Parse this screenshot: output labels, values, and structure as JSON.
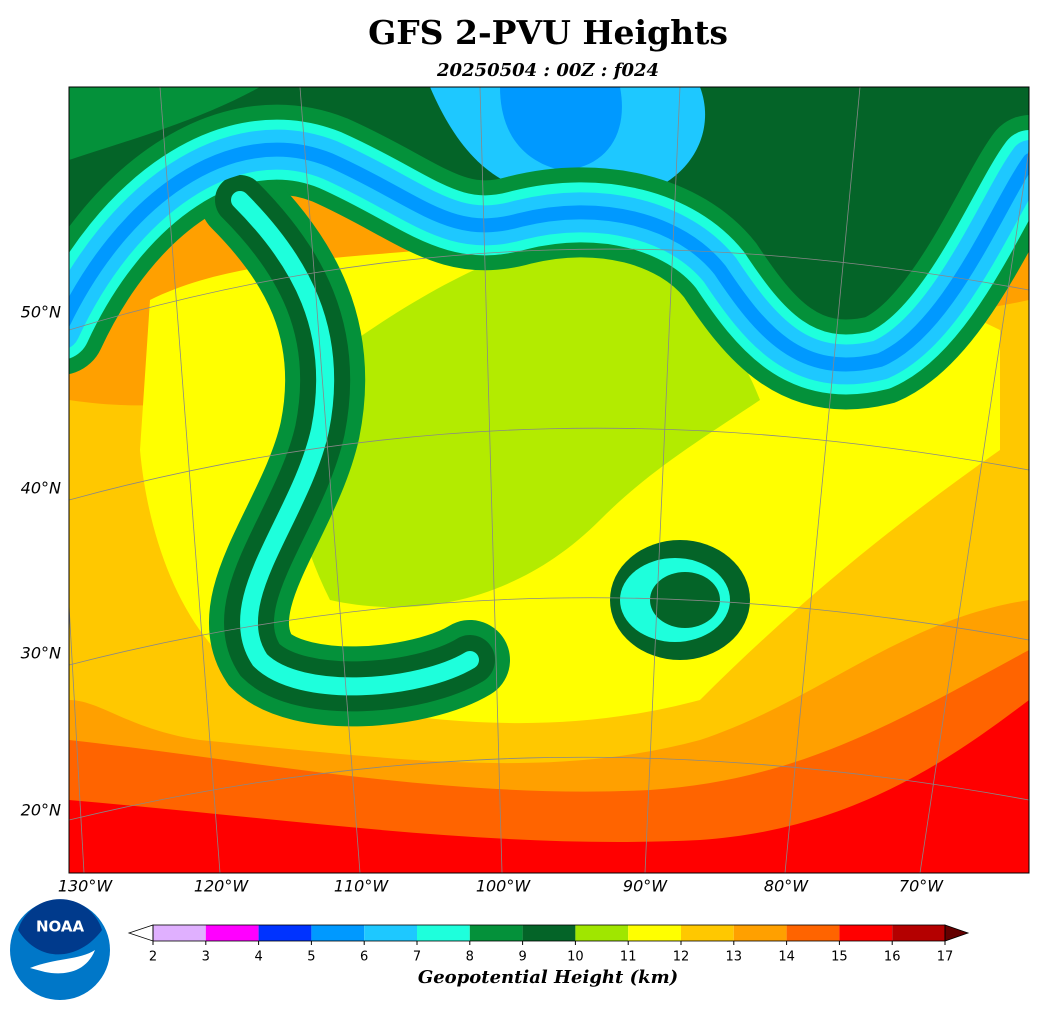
{
  "title": "GFS 2-PVU Heights",
  "subtitle": "20250504 : 00Z : f024",
  "map": {
    "lat_labels": [
      "50°N",
      "40°N",
      "30°N",
      "20°N"
    ],
    "lon_labels": [
      "130°W",
      "120°W",
      "110°W",
      "100°W",
      "90°W",
      "80°W",
      "70°W"
    ]
  },
  "colorbar": {
    "label": "Geopotential Height (km)",
    "range": [
      2,
      17
    ],
    "ticks": [
      2,
      3,
      4,
      5,
      6,
      7,
      8,
      9,
      10,
      11,
      12,
      13,
      14,
      15,
      16,
      17
    ],
    "colors": [
      "#e0b0ff",
      "#ff00ff",
      "#0033ff",
      "#0099ff",
      "#1ec8ff",
      "#1effdc",
      "#04913a",
      "#046428",
      "#a0e600",
      "#ffff00",
      "#ffc800",
      "#ffa000",
      "#ff6400",
      "#ff0000",
      "#b40000"
    ],
    "under_color": "#ffffff",
    "over_color": "#640000"
  },
  "logo": "NOAA"
}
